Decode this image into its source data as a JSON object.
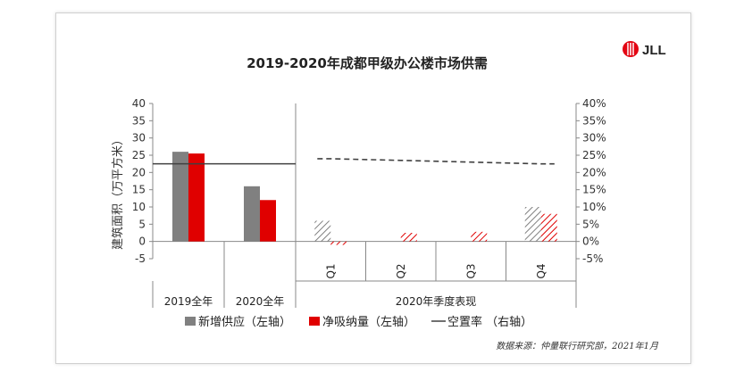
{
  "chart_data": {
    "type": "bar",
    "title": "2019-2020年成都甲级办公楼市场供需",
    "ylabel": "建筑面积（万平方米）",
    "ylim": [
      -5,
      40
    ],
    "y_ticks": [
      "40",
      "35",
      "30",
      "25",
      "20",
      "15",
      "10",
      "5",
      "0",
      "-5"
    ],
    "y2_ticks": [
      "40%",
      "35%",
      "30%",
      "25%",
      "20%",
      "15%",
      "10%",
      "5%",
      "0%",
      "-5%"
    ],
    "y2lim": [
      -5,
      40
    ],
    "annual": {
      "categories": [
        "2019全年",
        "2020全年"
      ],
      "new_supply": [
        26,
        16
      ],
      "net_absorption": [
        25.5,
        12
      ],
      "vacancy_rate": [
        22.5,
        22.5
      ]
    },
    "quarterly": {
      "group_label": "2020年季度表现",
      "categories": [
        "Q1",
        "Q2",
        "Q3",
        "Q4"
      ],
      "new_supply": [
        6,
        0,
        0,
        10
      ],
      "net_absorption": [
        -1,
        2.5,
        2.8,
        8
      ],
      "vacancy_rate": [
        24,
        23.5,
        23,
        22.5
      ]
    },
    "legend": [
      "新增供应（左轴）",
      "净吸纳量（左轴）",
      "空置率 （右轴）"
    ],
    "colors": {
      "new_supply": "#808080",
      "net_absorption": "#e00000",
      "vacancy": "#404040"
    },
    "grid": false
  },
  "logo": "JLL",
  "source": "数据来源：仲量联行研究部，2021年1月"
}
